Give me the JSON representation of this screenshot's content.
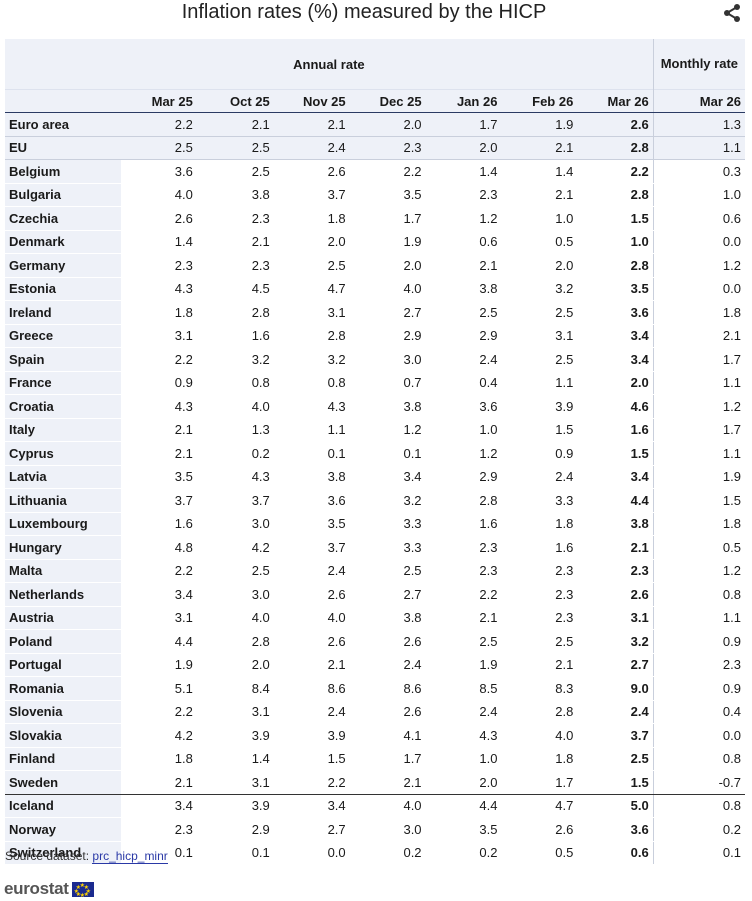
{
  "chart_data": {
    "type": "table",
    "title": "Inflation rates (%) measured by the HICP",
    "group_annual": "Annual rate",
    "group_monthly": "Monthly rate",
    "columns": [
      "Mar 25",
      "Oct 25",
      "Nov 25",
      "Dec 25",
      "Jan 26",
      "Feb 26",
      "Mar 26",
      "Mar 26"
    ],
    "rows": [
      {
        "name": "Euro area",
        "values": [
          "2.2",
          "2.1",
          "2.1",
          "2.0",
          "1.7",
          "1.9",
          "2.6",
          "1.3"
        ]
      },
      {
        "name": "EU",
        "values": [
          "2.5",
          "2.5",
          "2.4",
          "2.3",
          "2.0",
          "2.1",
          "2.8",
          "1.1"
        ]
      },
      {
        "name": "Belgium",
        "values": [
          "3.6",
          "2.5",
          "2.6",
          "2.2",
          "1.4",
          "1.4",
          "2.2",
          "0.3"
        ]
      },
      {
        "name": "Bulgaria",
        "values": [
          "4.0",
          "3.8",
          "3.7",
          "3.5",
          "2.3",
          "2.1",
          "2.8",
          "1.0"
        ]
      },
      {
        "name": "Czechia",
        "values": [
          "2.6",
          "2.3",
          "1.8",
          "1.7",
          "1.2",
          "1.0",
          "1.5",
          "0.6"
        ]
      },
      {
        "name": "Denmark",
        "values": [
          "1.4",
          "2.1",
          "2.0",
          "1.9",
          "0.6",
          "0.5",
          "1.0",
          "0.0"
        ]
      },
      {
        "name": "Germany",
        "values": [
          "2.3",
          "2.3",
          "2.5",
          "2.0",
          "2.1",
          "2.0",
          "2.8",
          "1.2"
        ]
      },
      {
        "name": "Estonia",
        "values": [
          "4.3",
          "4.5",
          "4.7",
          "4.0",
          "3.8",
          "3.2",
          "3.5",
          "0.0"
        ]
      },
      {
        "name": "Ireland",
        "values": [
          "1.8",
          "2.8",
          "3.1",
          "2.7",
          "2.5",
          "2.5",
          "3.6",
          "1.8"
        ]
      },
      {
        "name": "Greece",
        "values": [
          "3.1",
          "1.6",
          "2.8",
          "2.9",
          "2.9",
          "3.1",
          "3.4",
          "2.1"
        ]
      },
      {
        "name": "Spain",
        "values": [
          "2.2",
          "3.2",
          "3.2",
          "3.0",
          "2.4",
          "2.5",
          "3.4",
          "1.7"
        ]
      },
      {
        "name": "France",
        "values": [
          "0.9",
          "0.8",
          "0.8",
          "0.7",
          "0.4",
          "1.1",
          "2.0",
          "1.1"
        ]
      },
      {
        "name": "Croatia",
        "values": [
          "4.3",
          "4.0",
          "4.3",
          "3.8",
          "3.6",
          "3.9",
          "4.6",
          "1.2"
        ]
      },
      {
        "name": "Italy",
        "values": [
          "2.1",
          "1.3",
          "1.1",
          "1.2",
          "1.0",
          "1.5",
          "1.6",
          "1.7"
        ]
      },
      {
        "name": "Cyprus",
        "values": [
          "2.1",
          "0.2",
          "0.1",
          "0.1",
          "1.2",
          "0.9",
          "1.5",
          "1.1"
        ]
      },
      {
        "name": "Latvia",
        "values": [
          "3.5",
          "4.3",
          "3.8",
          "3.4",
          "2.9",
          "2.4",
          "3.4",
          "1.9"
        ]
      },
      {
        "name": "Lithuania",
        "values": [
          "3.7",
          "3.7",
          "3.6",
          "3.2",
          "2.8",
          "3.3",
          "4.4",
          "1.5"
        ]
      },
      {
        "name": "Luxembourg",
        "values": [
          "1.6",
          "3.0",
          "3.5",
          "3.3",
          "1.6",
          "1.8",
          "3.8",
          "1.8"
        ]
      },
      {
        "name": "Hungary",
        "values": [
          "4.8",
          "4.2",
          "3.7",
          "3.3",
          "2.3",
          "1.6",
          "2.1",
          "0.5"
        ]
      },
      {
        "name": "Malta",
        "values": [
          "2.2",
          "2.5",
          "2.4",
          "2.5",
          "2.3",
          "2.3",
          "2.3",
          "1.2"
        ]
      },
      {
        "name": "Netherlands",
        "values": [
          "3.4",
          "3.0",
          "2.6",
          "2.7",
          "2.2",
          "2.3",
          "2.6",
          "0.8"
        ]
      },
      {
        "name": "Austria",
        "values": [
          "3.1",
          "4.0",
          "4.0",
          "3.8",
          "2.1",
          "2.3",
          "3.1",
          "1.1"
        ]
      },
      {
        "name": "Poland",
        "values": [
          "4.4",
          "2.8",
          "2.6",
          "2.6",
          "2.5",
          "2.5",
          "3.2",
          "0.9"
        ]
      },
      {
        "name": "Portugal",
        "values": [
          "1.9",
          "2.0",
          "2.1",
          "2.4",
          "1.9",
          "2.1",
          "2.7",
          "2.3"
        ]
      },
      {
        "name": "Romania",
        "values": [
          "5.1",
          "8.4",
          "8.6",
          "8.6",
          "8.5",
          "8.3",
          "9.0",
          "0.9"
        ]
      },
      {
        "name": "Slovenia",
        "values": [
          "2.2",
          "3.1",
          "2.4",
          "2.6",
          "2.4",
          "2.8",
          "2.4",
          "0.4"
        ]
      },
      {
        "name": "Slovakia",
        "values": [
          "4.2",
          "3.9",
          "3.9",
          "4.1",
          "4.3",
          "4.0",
          "3.7",
          "0.0"
        ]
      },
      {
        "name": "Finland",
        "values": [
          "1.8",
          "1.4",
          "1.5",
          "1.7",
          "1.0",
          "1.8",
          "2.5",
          "0.8"
        ]
      },
      {
        "name": "Sweden",
        "values": [
          "2.1",
          "3.1",
          "2.2",
          "2.1",
          "2.0",
          "1.7",
          "1.5",
          "-0.7"
        ]
      },
      {
        "name": "Iceland",
        "values": [
          "3.4",
          "3.9",
          "3.4",
          "4.0",
          "4.4",
          "4.7",
          "5.0",
          "0.8"
        ]
      },
      {
        "name": "Norway",
        "values": [
          "2.3",
          "2.9",
          "2.7",
          "3.0",
          "3.5",
          "2.6",
          "3.6",
          "0.2"
        ]
      },
      {
        "name": "Switzerland",
        "values": [
          "0.1",
          "0.1",
          "0.0",
          "0.2",
          "0.2",
          "0.5",
          "0.6",
          "0.1"
        ]
      }
    ]
  },
  "footer": {
    "source_label": "Source dataset:",
    "source_link": "prc_hicp_minr",
    "logo_text": "eurostat"
  },
  "icons": {
    "share": "share-icon",
    "flag": "eu-flag-icon"
  },
  "colors": {
    "header_bg": "#eef1f8",
    "link": "#2a39a6",
    "flag_blue": "#1b2a8f",
    "flag_star": "#ffd400"
  }
}
